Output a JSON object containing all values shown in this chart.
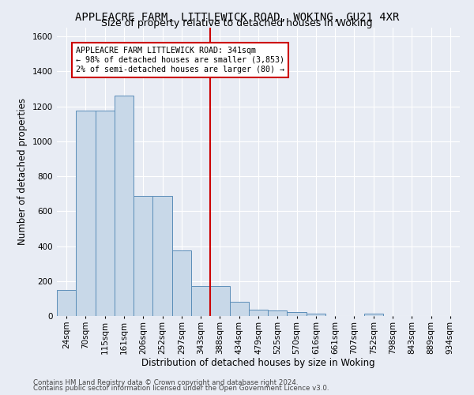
{
  "title": "APPLEACRE FARM, LITTLEWICK ROAD, WOKING, GU21 4XR",
  "subtitle": "Size of property relative to detached houses in Woking",
  "xlabel": "Distribution of detached houses by size in Woking",
  "ylabel": "Number of detached properties",
  "footer_line1": "Contains HM Land Registry data © Crown copyright and database right 2024.",
  "footer_line2": "Contains public sector information licensed under the Open Government Licence v3.0.",
  "bin_labels": [
    "24sqm",
    "70sqm",
    "115sqm",
    "161sqm",
    "206sqm",
    "252sqm",
    "297sqm",
    "343sqm",
    "388sqm",
    "434sqm",
    "479sqm",
    "525sqm",
    "570sqm",
    "616sqm",
    "661sqm",
    "707sqm",
    "752sqm",
    "798sqm",
    "843sqm",
    "889sqm",
    "934sqm"
  ],
  "bar_values": [
    150,
    1175,
    1175,
    1260,
    685,
    685,
    375,
    170,
    170,
    80,
    35,
    30,
    22,
    15,
    0,
    0,
    15,
    0,
    0,
    0,
    0
  ],
  "bar_color": "#c8d8e8",
  "bar_edgecolor": "#5b8db8",
  "vline_pos": 7.5,
  "vline_color": "#cc0000",
  "annotation_text": "APPLEACRE FARM LITTLEWICK ROAD: 341sqm\n← 98% of detached houses are smaller (3,853)\n2% of semi-detached houses are larger (80) →",
  "annotation_box_color": "#ffffff",
  "annotation_box_edgecolor": "#cc0000",
  "ylim": [
    0,
    1650
  ],
  "yticks": [
    0,
    200,
    400,
    600,
    800,
    1000,
    1200,
    1400,
    1600
  ],
  "bg_color": "#e8ecf4",
  "plot_bg_color": "#e8ecf4",
  "grid_color": "#ffffff",
  "title_fontsize": 10,
  "subtitle_fontsize": 9,
  "xlabel_fontsize": 8.5,
  "ylabel_fontsize": 8.5,
  "tick_fontsize": 7.5,
  "annotation_fontsize": 7.2
}
